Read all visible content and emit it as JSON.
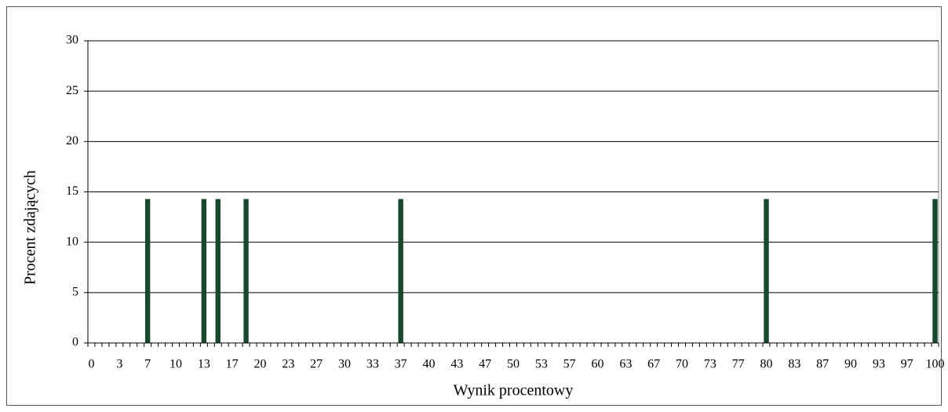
{
  "chart_data": {
    "type": "bar",
    "x_label": "Wynik procentowy",
    "y_label": "Procent zdających",
    "color": "#174a2c",
    "categories": [
      "0",
      null,
      null,
      null,
      "3",
      null,
      null,
      null,
      "7",
      null,
      null,
      null,
      "10",
      null,
      null,
      null,
      "13",
      null,
      null,
      null,
      "17",
      null,
      null,
      null,
      "20",
      null,
      null,
      null,
      "23",
      null,
      null,
      null,
      "27",
      null,
      null,
      null,
      "30",
      null,
      null,
      null,
      "33",
      null,
      null,
      null,
      "37",
      null,
      null,
      null,
      "40",
      null,
      null,
      null,
      "43",
      null,
      null,
      null,
      "47",
      null,
      null,
      null,
      "50",
      null,
      null,
      null,
      "53",
      null,
      null,
      null,
      "57",
      null,
      null,
      null,
      "60",
      null,
      null,
      null,
      "63",
      null,
      null,
      null,
      "67",
      null,
      null,
      null,
      "70",
      null,
      null,
      null,
      "73",
      null,
      null,
      null,
      "77",
      null,
      null,
      null,
      "80",
      null,
      null,
      null,
      "83",
      null,
      null,
      null,
      "87",
      null,
      null,
      null,
      "90",
      null,
      null,
      null,
      "93",
      null,
      null,
      null,
      "97",
      null,
      null,
      null,
      "100"
    ],
    "values": [
      0,
      0,
      0,
      0,
      0,
      0,
      0,
      0,
      14.29,
      0,
      0,
      0,
      0,
      0,
      0,
      0,
      14.29,
      0,
      14.29,
      0,
      0,
      0,
      14.29,
      0,
      0,
      0,
      0,
      0,
      0,
      0,
      0,
      0,
      0,
      0,
      0,
      0,
      0,
      0,
      0,
      0,
      0,
      0,
      0,
      0,
      14.29,
      0,
      0,
      0,
      0,
      0,
      0,
      0,
      0,
      0,
      0,
      0,
      0,
      0,
      0,
      0,
      0,
      0,
      0,
      0,
      0,
      0,
      0,
      0,
      0,
      0,
      0,
      0,
      0,
      0,
      0,
      0,
      0,
      0,
      0,
      0,
      0,
      0,
      0,
      0,
      0,
      0,
      0,
      0,
      0,
      0,
      0,
      0,
      0,
      0,
      0,
      0,
      14.29,
      0,
      0,
      0,
      0,
      0,
      0,
      0,
      0,
      0,
      0,
      0,
      0,
      0,
      0,
      0,
      0,
      0,
      0,
      0,
      0,
      0,
      0,
      0,
      14.29
    ],
    "ylim": [
      0,
      30
    ],
    "yticks": [
      0,
      5,
      10,
      15,
      20,
      25,
      30
    ],
    "grid": true
  }
}
